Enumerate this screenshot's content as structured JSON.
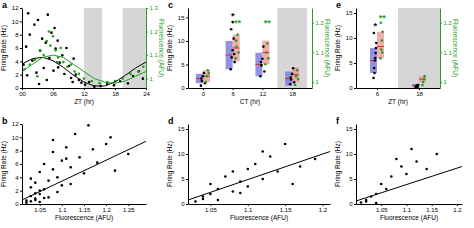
{
  "chart_data": [
    {
      "type": "scatter",
      "title": "a",
      "x_label": "ZT (hr)",
      "y_label": "Firing Rate (Hz)",
      "y2_label": "Fluorescence (AFU)",
      "xlim": [
        0,
        24
      ],
      "xticks": [
        {
          "value": 0,
          "label": "00"
        },
        {
          "value": 6,
          "label": "06"
        },
        12,
        18,
        24
      ],
      "ylim": [
        0,
        12
      ],
      "yticks": [
        0,
        2,
        4,
        6,
        8,
        10,
        12
      ],
      "y2lim": [
        0.96,
        1.3
      ],
      "y2ticks": [
        1,
        1.1,
        1.2,
        1.3
      ],
      "shaded": [
        [
          12,
          15.5
        ],
        [
          19.5,
          24
        ]
      ],
      "series": [
        {
          "type": "scatter",
          "color": "#000000",
          "x": [
            0.3,
            0.8,
            1.2,
            1.5,
            2.0,
            2.4,
            2.8,
            3.1,
            3.5,
            3.9,
            4.2,
            4.6,
            5.0,
            5.3,
            5.7,
            6.1,
            6.5,
            6.9,
            7.3,
            7.8,
            8.2,
            8.6,
            9.1,
            9.5,
            10.0,
            10.4,
            11.0,
            11.5,
            12.2,
            13.0,
            14.0,
            15.2,
            16.5,
            17.8,
            19.0,
            20.5,
            21.5,
            22.6,
            23.4,
            1.0,
            3.3,
            4.8,
            6.3,
            7.0,
            9.8
          ],
          "values": [
            3.5,
            6.2,
            11.2,
            8.0,
            4.1,
            9.5,
            2.3,
            10.2,
            5.6,
            7.4,
            3.0,
            6.8,
            11.0,
            4.5,
            8.3,
            2.6,
            5.9,
            7.1,
            3.8,
            4.9,
            2.1,
            6.0,
            3.3,
            1.5,
            4.4,
            2.0,
            1.2,
            0.8,
            0.5,
            0.9,
            0.2,
            0.3,
            0.6,
            0.4,
            1.0,
            0.7,
            1.8,
            2.5,
            1.4,
            1.9,
            0.6,
            1.2,
            9.0,
            3.1,
            0.9
          ]
        },
        {
          "type": "scatter",
          "color": "#22a022",
          "axis": "y2",
          "x": [
            0.5,
            1.5,
            2.5,
            3.5,
            4.2,
            4.8,
            5.5,
            6.0,
            6.5,
            7.0,
            7.5,
            8.0,
            8.8,
            9.5,
            10.2,
            11.0,
            12.0,
            13.5,
            15.0,
            16.5,
            18.0,
            19.5,
            21.0,
            22.5,
            23.5,
            5.2,
            6.8,
            3.0
          ],
          "values": [
            1.04,
            1.06,
            1.08,
            1.12,
            1.1,
            1.16,
            1.14,
            1.18,
            1.12,
            1.09,
            1.13,
            1.07,
            1.05,
            1.06,
            1.03,
            1.02,
            1.0,
            0.99,
            0.98,
            0.985,
            0.99,
            1.0,
            1.02,
            1.03,
            1.05,
            1.2,
            1.07,
            1.01
          ]
        },
        {
          "type": "line",
          "color": "#000000",
          "x": [
            0,
            2,
            4,
            6,
            8,
            10,
            12,
            14,
            16,
            18,
            20,
            22,
            24
          ],
          "values": [
            3.6,
            4.4,
            4.6,
            4.1,
            3.1,
            1.9,
            0.9,
            0.3,
            0.3,
            0.9,
            1.9,
            3.0,
            3.9
          ]
        },
        {
          "type": "line",
          "color": "#22a022",
          "axis": "y2",
          "x": [
            0,
            2,
            4,
            6,
            8,
            10,
            12,
            14,
            16,
            18,
            20,
            22,
            24
          ],
          "values": [
            1.03,
            1.06,
            1.09,
            1.1,
            1.09,
            1.06,
            1.03,
            1.0,
            0.985,
            0.98,
            0.99,
            1.01,
            1.03
          ]
        }
      ]
    },
    {
      "type": "scatter",
      "title": "b",
      "x_label": "Fluorescence (AFU)",
      "y_label": "Firing Rate (Hz)",
      "xlim": [
        1.01,
        1.29
      ],
      "xticks": [
        1.05,
        1.1,
        1.15,
        1.2,
        1.25
      ],
      "ylim": [
        0,
        12
      ],
      "yticks": [
        0,
        2,
        4,
        6,
        8,
        10,
        12
      ],
      "series": [
        {
          "type": "scatter",
          "color": "#000000",
          "x": [
            1.02,
            1.03,
            1.03,
            1.04,
            1.04,
            1.05,
            1.05,
            1.06,
            1.06,
            1.07,
            1.07,
            1.08,
            1.08,
            1.09,
            1.1,
            1.1,
            1.11,
            1.12,
            1.13,
            1.14,
            1.15,
            1.16,
            1.18,
            1.2,
            1.22,
            1.25,
            1.02,
            1.03,
            1.04,
            1.05,
            1.06,
            1.09,
            1.12,
            1.17,
            1.21,
            1.03,
            1.04,
            1.05,
            1.08,
            1.11
          ],
          "values": [
            0.5,
            1.2,
            2.5,
            0.8,
            3.2,
            1.5,
            4.8,
            2.2,
            6.0,
            3.5,
            1.0,
            5.2,
            7.8,
            4.0,
            6.5,
            2.8,
            8.5,
            5.5,
            10.5,
            7.0,
            4.6,
            11.8,
            6.2,
            9.0,
            5.0,
            7.5,
            0.2,
            0.4,
            0.6,
            2.0,
            0.9,
            1.8,
            3.0,
            8.2,
            10.0,
            3.8,
            1.6,
            0.3,
            9.6,
            6.8
          ]
        },
        {
          "type": "line",
          "color": "#000000",
          "x": [
            1.01,
            1.29
          ],
          "values": [
            0.6,
            9.4
          ]
        }
      ]
    },
    {
      "type": "box",
      "title": "c",
      "x_label": "CT (hr)",
      "y_label": "Firing Rate (Hz)",
      "y2_label": "Fluorescence (AFU)",
      "xlim": [
        -3,
        22
      ],
      "xticks": [
        0,
        6,
        12,
        18
      ],
      "ylim": [
        0,
        17
      ],
      "yticks": [
        0,
        5,
        10,
        15
      ],
      "y2lim": [
        0.98,
        1.25
      ],
      "y2ticks": [
        1,
        1.1,
        1.2
      ],
      "shaded": [
        [
          15,
          21
        ]
      ],
      "series": [
        {
          "type": "box",
          "color": "#7777dd",
          "x": [
            0,
            6,
            12,
            18
          ],
          "low": [
            1.0,
            4.0,
            2.5,
            0.5
          ],
          "high": [
            3.0,
            10.0,
            7.5,
            3.5
          ],
          "values": [
            2.0,
            7.0,
            5.0,
            2.0
          ]
        },
        {
          "type": "box",
          "color": "#ee9999",
          "axis": "y2",
          "x": [
            0,
            6,
            12,
            18
          ],
          "low": [
            1.0,
            1.07,
            1.06,
            1.0
          ],
          "high": [
            1.04,
            1.16,
            1.14,
            1.05
          ],
          "values": [
            1.02,
            1.115,
            1.1,
            1.025
          ]
        },
        {
          "type": "scatter",
          "color": "#000000",
          "x": [
            -0.4,
            -0.2,
            0,
            0.2,
            0.4,
            -0.3,
            5.6,
            5.8,
            6,
            6.2,
            6.4,
            5.7,
            6.3,
            6,
            11.6,
            11.8,
            12,
            12.2,
            12.4,
            11.7,
            17.6,
            17.8,
            18,
            18.2,
            18.4,
            17.7
          ],
          "values": [
            0.5,
            1.5,
            2.5,
            3.2,
            1.0,
            2.0,
            4.0,
            6.5,
            8.0,
            10.5,
            5.5,
            12.5,
            7.2,
            14.0,
            2.5,
            4.8,
            6.2,
            8.8,
            3.5,
            5.5,
            0.8,
            1.8,
            3.0,
            4.2,
            1.2,
            2.2
          ]
        },
        {
          "type": "scatter",
          "color": "#22a022",
          "axis": "y2",
          "x": [
            0.6,
            0.8,
            1.0,
            1.2,
            6.6,
            6.8,
            7.0,
            7.2,
            6.7,
            12.6,
            12.8,
            13.0,
            13.2,
            18.6,
            18.8,
            19.0,
            19.2
          ],
          "values": [
            1.0,
            1.02,
            1.04,
            1.03,
            1.08,
            1.12,
            1.16,
            1.1,
            1.14,
            1.06,
            1.1,
            1.13,
            1.08,
            0.99,
            1.02,
            1.04,
            1.01
          ]
        }
      ],
      "annotations": [
        {
          "text": "*",
          "x": 6,
          "y": 15.3,
          "color": "#000000"
        },
        {
          "text": "**",
          "x": 7,
          "y": 1.2,
          "axis": "y2",
          "color": "#22a022"
        },
        {
          "text": "**",
          "x": 13,
          "y": 1.2,
          "axis": "y2",
          "color": "#22a022"
        }
      ]
    },
    {
      "type": "scatter",
      "title": "d",
      "x_label": "Fluorescence (AFU)",
      "y_label": "Firing Rate (Hz)",
      "xlim": [
        1.02,
        1.21
      ],
      "xticks": [
        1.05,
        1.1,
        1.15,
        1.2
      ],
      "ylim": [
        0,
        16
      ],
      "yticks": [
        0,
        5,
        10,
        15
      ],
      "series": [
        {
          "type": "scatter",
          "color": "#000000",
          "x": [
            1.03,
            1.04,
            1.05,
            1.05,
            1.06,
            1.07,
            1.08,
            1.08,
            1.09,
            1.1,
            1.1,
            1.11,
            1.12,
            1.13,
            1.14,
            1.15,
            1.17,
            1.19,
            1.04,
            1.06,
            1.09,
            1.12,
            1.16
          ],
          "values": [
            0.5,
            1.5,
            2.0,
            4.0,
            3.0,
            5.5,
            2.5,
            6.5,
            4.5,
            7.0,
            3.5,
            8.0,
            5.0,
            9.5,
            6.5,
            12.0,
            7.5,
            9.0,
            1.0,
            0.8,
            2.2,
            10.5,
            4.0
          ]
        },
        {
          "type": "line",
          "color": "#000000",
          "x": [
            1.02,
            1.21
          ],
          "values": [
            0.8,
            10.5
          ]
        }
      ]
    },
    {
      "type": "box",
      "title": "e",
      "x_label": "ZT (hr)",
      "y_label": "Firing Rate (Hz)",
      "y2_label": "Fluorescence (AFU)",
      "xlim": [
        0,
        24
      ],
      "xticks": [
        6,
        18
      ],
      "ylim": [
        0,
        16
      ],
      "yticks": [
        0,
        5,
        10,
        15
      ],
      "y2lim": [
        0.98,
        1.25
      ],
      "y2ticks": [
        1,
        1.1,
        1.2
      ],
      "shaded": [
        [
          12,
          24
        ]
      ],
      "series": [
        {
          "type": "box",
          "color": "#7777dd",
          "x": [
            6,
            18
          ],
          "low": [
            3.0,
            0.2
          ],
          "high": [
            8.0,
            0.8
          ],
          "values": [
            5.5,
            0.5
          ]
        },
        {
          "type": "box",
          "color": "#ee9999",
          "axis": "y2",
          "x": [
            6,
            18
          ],
          "low": [
            1.08,
            1.0
          ],
          "high": [
            1.17,
            1.02
          ],
          "values": [
            1.12,
            1.01
          ]
        },
        {
          "type": "scatter",
          "color": "#000000",
          "x": [
            5.0,
            5.2,
            5.4,
            5.6,
            5.8,
            5.1,
            5.5,
            5.3,
            5.7,
            17.0,
            17.2,
            17.4,
            17.6,
            17.8,
            17.3
          ],
          "values": [
            2.0,
            4.0,
            5.5,
            7.0,
            9.0,
            11.0,
            6.0,
            3.0,
            8.0,
            0.1,
            0.3,
            0.5,
            0.2,
            0.6,
            0.4
          ]
        },
        {
          "type": "scatter",
          "color": "#22a022",
          "axis": "y2",
          "x": [
            7.0,
            7.2,
            7.4,
            7.6,
            7.1,
            7.5,
            19.0,
            19.2,
            19.4,
            19.6
          ],
          "values": [
            1.08,
            1.11,
            1.14,
            1.17,
            1.2,
            1.1,
            0.99,
            1.0,
            1.01,
            1.02
          ]
        }
      ],
      "annotations": [
        {
          "text": "*",
          "x": 5.5,
          "y": 12.5,
          "color": "#000000"
        },
        {
          "text": "**",
          "x": 7.5,
          "y": 1.215,
          "axis": "y2",
          "color": "#22a022"
        }
      ]
    },
    {
      "type": "scatter",
      "title": "f",
      "x_label": "Fluorescence (AFU)",
      "y_label": "Firing Rate (Hz)",
      "xlim": [
        1.0,
        1.21
      ],
      "xticks": [
        1.05,
        1.1,
        1.15,
        1.2
      ],
      "ylim": [
        0,
        16
      ],
      "yticks": [
        0,
        5,
        10,
        15
      ],
      "series": [
        {
          "type": "scatter",
          "color": "#000000",
          "x": [
            1.01,
            1.02,
            1.03,
            1.04,
            1.05,
            1.06,
            1.07,
            1.08,
            1.09,
            1.1,
            1.11,
            1.12,
            1.14,
            1.16,
            1.02,
            1.04
          ],
          "values": [
            0.3,
            0.8,
            1.5,
            2.0,
            4.0,
            3.0,
            5.5,
            9.0,
            7.5,
            6.0,
            11.0,
            8.5,
            7.0,
            10.0,
            0.5,
            0.2
          ]
        },
        {
          "type": "line",
          "color": "#000000",
          "x": [
            1.0,
            1.21
          ],
          "values": [
            0.6,
            7.5
          ]
        }
      ]
    }
  ]
}
